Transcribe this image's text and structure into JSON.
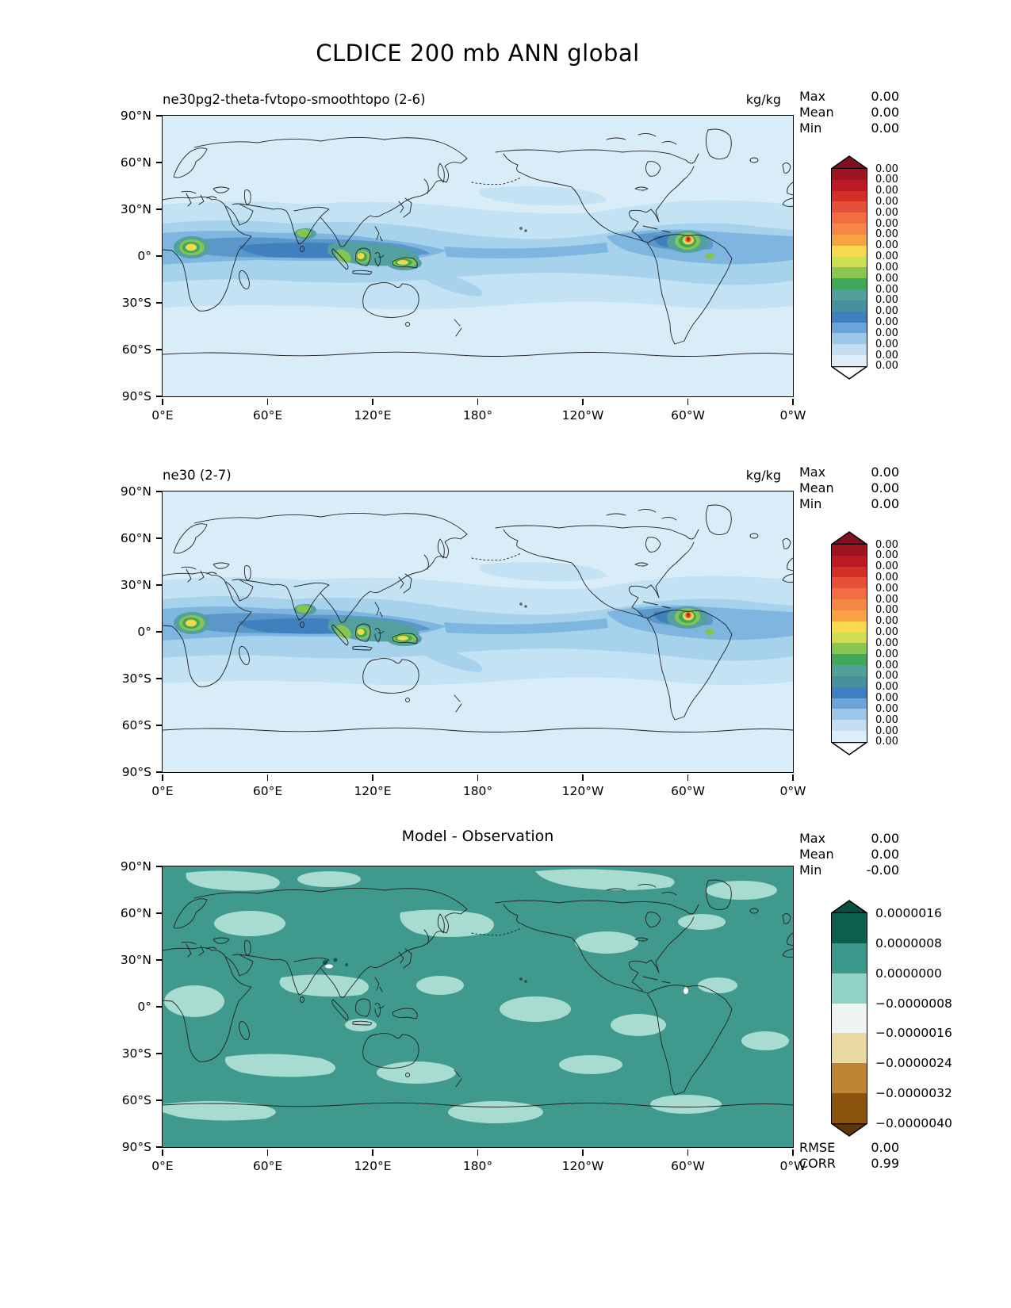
{
  "figure_title": "CLDICE 200 mb ANN global",
  "axes": {
    "lat": [
      "90°N",
      "60°N",
      "30°N",
      "0°",
      "30°S",
      "60°S",
      "90°S"
    ],
    "lon": [
      "0°E",
      "60°E",
      "120°E",
      "180°",
      "120°W",
      "60°W",
      "0°W"
    ]
  },
  "panels": [
    {
      "subtitle": "ne30pg2-theta-fvtopo-smoothtopo (2-6)",
      "units": "kg/kg",
      "stats": [
        {
          "label": "Max",
          "value": "0.00"
        },
        {
          "label": "Mean",
          "value": "0.00"
        },
        {
          "label": "Min",
          "value": "0.00"
        }
      ],
      "colorbar": {
        "cap_top": "#82101f",
        "cap_bottom": "#ffffff",
        "segments": [
          "#9d1320",
          "#bb1a24",
          "#d42e27",
          "#e64f39",
          "#f26d42",
          "#f58643",
          "#f9a245",
          "#f8d84d",
          "#cede51",
          "#88c551",
          "#41a75a",
          "#53a09a",
          "#47909e",
          "#3f7ec1",
          "#69a5d8",
          "#9cc7e8",
          "#c3def3",
          "#ddeef9"
        ],
        "tick_labels": [
          "0.00",
          "0.00",
          "0.00",
          "0.00",
          "0.00",
          "0.00",
          "0.00",
          "0.00",
          "0.00",
          "0.00",
          "0.00",
          "0.00",
          "0.00",
          "0.00",
          "0.00",
          "0.00",
          "0.00",
          "0.00",
          "0.00"
        ]
      }
    },
    {
      "subtitle": "ne30 (2-7)",
      "units": "kg/kg",
      "stats": [
        {
          "label": "Max",
          "value": "0.00"
        },
        {
          "label": "Mean",
          "value": "0.00"
        },
        {
          "label": "Min",
          "value": "0.00"
        }
      ],
      "colorbar": {
        "cap_top": "#82101f",
        "cap_bottom": "#ffffff",
        "segments": [
          "#9d1320",
          "#bb1a24",
          "#d42e27",
          "#e64f39",
          "#f26d42",
          "#f58643",
          "#f9a245",
          "#f8d84d",
          "#cede51",
          "#88c551",
          "#41a75a",
          "#53a09a",
          "#47909e",
          "#3f7ec1",
          "#69a5d8",
          "#9cc7e8",
          "#c3def3",
          "#ddeef9"
        ],
        "tick_labels": [
          "0.00",
          "0.00",
          "0.00",
          "0.00",
          "0.00",
          "0.00",
          "0.00",
          "0.00",
          "0.00",
          "0.00",
          "0.00",
          "0.00",
          "0.00",
          "0.00",
          "0.00",
          "0.00",
          "0.00",
          "0.00",
          "0.00"
        ]
      }
    },
    {
      "subtitle": "Model - Observation",
      "units": "",
      "stats": [
        {
          "label": "Max",
          "value": "0.00"
        },
        {
          "label": "Mean",
          "value": "0.00"
        },
        {
          "label": "Min",
          "value": "-0.00"
        }
      ],
      "colorbar": {
        "cap_top": "#0b4e42",
        "cap_bottom": "#5e3708",
        "segments": [
          "#0e5e50",
          "#3a988c",
          "#90d2c4",
          "#eef4f1",
          "#e8d9a3",
          "#bf8434",
          "#8a540e"
        ],
        "tick_labels": [
          "0.0000016",
          "0.0000008",
          "0.0000000",
          "−0.0000008",
          "−0.0000016",
          "−0.0000024",
          "−0.0000032",
          "−0.0000040"
        ]
      },
      "extra_stats": [
        {
          "label": "RMSE",
          "value": "0.00"
        },
        {
          "label": "CORR",
          "value": "0.99"
        }
      ]
    }
  ],
  "chart_data": [
    {
      "type": "heatmap",
      "title": "ne30pg2-theta-fvtopo-smoothtopo (2-6)",
      "units": "kg/kg",
      "projection": "global lat-lon map",
      "x_tick_labels": [
        "0°E",
        "60°E",
        "120°E",
        "180°",
        "120°W",
        "60°W",
        "0°W"
      ],
      "y_tick_labels": [
        "90°N",
        "60°N",
        "30°N",
        "0°",
        "30°S",
        "60°S",
        "90°S"
      ],
      "colorbar_tick_labels": [
        "0.00",
        "0.00",
        "0.00",
        "0.00",
        "0.00",
        "0.00",
        "0.00",
        "0.00",
        "0.00",
        "0.00",
        "0.00",
        "0.00",
        "0.00",
        "0.00",
        "0.00",
        "0.00",
        "0.00",
        "0.00",
        "0.00"
      ],
      "stats": {
        "max": 0.0,
        "mean": 0.0,
        "min": 0.0
      },
      "legend_position": "right",
      "grid": false
    },
    {
      "type": "heatmap",
      "title": "ne30 (2-7)",
      "units": "kg/kg",
      "projection": "global lat-lon map",
      "x_tick_labels": [
        "0°E",
        "60°E",
        "120°E",
        "180°",
        "120°W",
        "60°W",
        "0°W"
      ],
      "y_tick_labels": [
        "90°N",
        "60°N",
        "30°N",
        "0°",
        "30°S",
        "60°S",
        "90°S"
      ],
      "colorbar_tick_labels": [
        "0.00",
        "0.00",
        "0.00",
        "0.00",
        "0.00",
        "0.00",
        "0.00",
        "0.00",
        "0.00",
        "0.00",
        "0.00",
        "0.00",
        "0.00",
        "0.00",
        "0.00",
        "0.00",
        "0.00",
        "0.00",
        "0.00"
      ],
      "stats": {
        "max": 0.0,
        "mean": 0.0,
        "min": 0.0
      },
      "legend_position": "right",
      "grid": false
    },
    {
      "type": "heatmap",
      "title": "Model - Observation",
      "projection": "global lat-lon map",
      "x_tick_labels": [
        "0°E",
        "60°E",
        "120°E",
        "180°",
        "120°W",
        "60°W",
        "0°W"
      ],
      "y_tick_labels": [
        "90°N",
        "60°N",
        "30°N",
        "0°",
        "30°S",
        "60°S",
        "90°S"
      ],
      "colorbar_levels": [
        1.6e-06,
        8e-07,
        0.0,
        -8e-07,
        -1.6e-06,
        -2.4e-06,
        -3.2e-06,
        -4e-06
      ],
      "stats": {
        "max": 0.0,
        "mean": 0.0,
        "min": -0.0,
        "rmse": 0.0,
        "corr": 0.99
      },
      "legend_position": "right",
      "grid": false
    }
  ]
}
